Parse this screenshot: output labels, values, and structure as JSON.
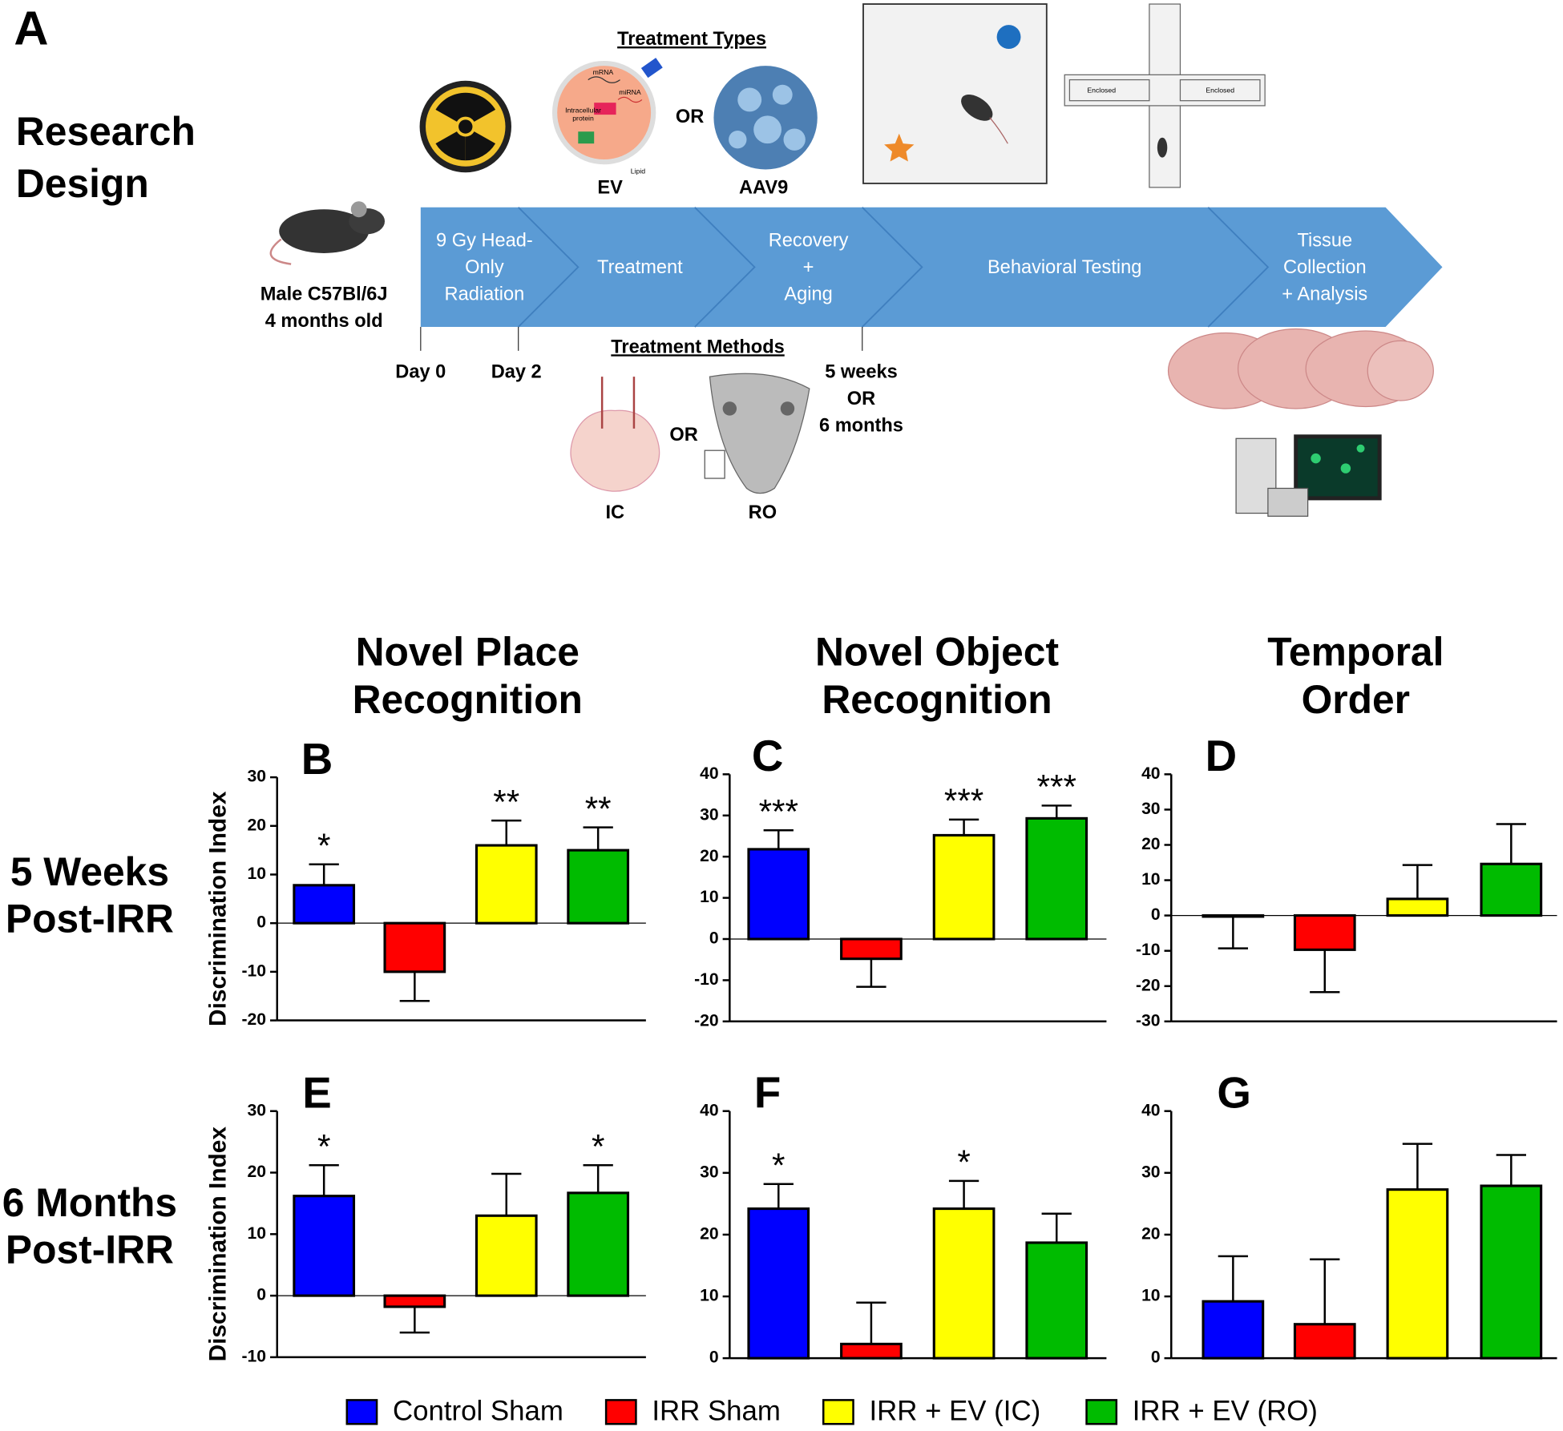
{
  "design": {
    "panel": "A",
    "title": [
      "Research",
      "Design"
    ],
    "mouse": [
      "Male C57Bl/6J",
      "4 months old"
    ],
    "treatment_types": {
      "heading": "Treatment Types",
      "ev": "EV",
      "or": "OR",
      "aav": "AAV9",
      "ev_labels": [
        "mRNA",
        "miRNA",
        "Intracellular",
        "protein",
        "Lipid"
      ]
    },
    "maze_labels": [
      "Enclosed",
      "Enclosed"
    ],
    "stages": [
      [
        "9 Gy Head-",
        "Only",
        "Radiation"
      ],
      [
        "Treatment"
      ],
      [
        "Recovery",
        "+",
        "Aging"
      ],
      [
        "Behavioral Testing"
      ],
      [
        "Tissue",
        "Collection",
        "+ Analysis"
      ]
    ],
    "days": [
      "Day 0",
      "Day 2"
    ],
    "methods": {
      "heading": "Treatment Methods",
      "ic": "IC",
      "or": "OR",
      "ro": "RO"
    },
    "timing": [
      "5 weeks",
      "OR",
      "6 months"
    ]
  },
  "columns": [
    [
      "Novel Place",
      "Recognition"
    ],
    [
      "Novel Object",
      "Recognition"
    ],
    [
      "Temporal",
      "Order"
    ]
  ],
  "rows": [
    [
      "5 Weeks",
      "Post-IRR"
    ],
    [
      "6 Months",
      "Post-IRR"
    ]
  ],
  "legend": [
    {
      "name": "Control Sham",
      "color": "#0000ff"
    },
    {
      "name": "IRR Sham",
      "color": "#ff0000"
    },
    {
      "name": "IRR + EV (IC)",
      "color": "#ffff00"
    },
    {
      "name": "IRR + EV (RO)",
      "color": "#00bb00"
    }
  ],
  "chart_data": [
    {
      "type": "bar",
      "panel": "B",
      "ylabel": "Discrimination Index",
      "ylim": [
        -20,
        30
      ],
      "yticks": [
        -20,
        -10,
        0,
        10,
        20,
        30
      ],
      "values": [
        7.8,
        -10,
        16,
        15
      ],
      "errors": [
        4.3,
        6,
        5.1,
        4.7
      ],
      "significance": [
        "*",
        null,
        "**",
        "**"
      ]
    },
    {
      "type": "bar",
      "panel": "C",
      "ylim": [
        -20,
        40
      ],
      "yticks": [
        -20,
        -10,
        0,
        10,
        20,
        30,
        40
      ],
      "values": [
        21.8,
        -4.8,
        25.2,
        29.3
      ],
      "errors": [
        4.6,
        6.8,
        3.8,
        3.1
      ],
      "significance": [
        "***",
        null,
        "***",
        "***"
      ]
    },
    {
      "type": "bar",
      "panel": "D",
      "ylim": [
        -30,
        40
      ],
      "yticks": [
        -30,
        -20,
        -10,
        0,
        10,
        20,
        30,
        40
      ],
      "values": [
        -0.3,
        -9.7,
        4.7,
        14.6
      ],
      "errors": [
        9,
        12,
        9.6,
        11.3
      ],
      "significance": [
        null,
        null,
        null,
        null
      ]
    },
    {
      "type": "bar",
      "panel": "E",
      "ylabel": "Discrimination Index",
      "ylim": [
        -10,
        30
      ],
      "yticks": [
        -10,
        0,
        10,
        20,
        30
      ],
      "values": [
        16.2,
        -1.8,
        13,
        16.7
      ],
      "errors": [
        5,
        4.2,
        6.8,
        4.5
      ],
      "significance": [
        "*",
        null,
        null,
        "*"
      ]
    },
    {
      "type": "bar",
      "panel": "F",
      "ylim": [
        0,
        40
      ],
      "yticks": [
        0,
        10,
        20,
        30,
        40
      ],
      "values": [
        24.2,
        2.3,
        24.2,
        18.7
      ],
      "errors": [
        4,
        6.7,
        4.5,
        4.7
      ],
      "significance": [
        "*",
        null,
        "*",
        null
      ]
    },
    {
      "type": "bar",
      "panel": "G",
      "ylim": [
        0,
        40
      ],
      "yticks": [
        0,
        10,
        20,
        30,
        40
      ],
      "values": [
        9.2,
        5.5,
        27.3,
        27.9
      ],
      "errors": [
        7.3,
        10.5,
        7.4,
        5
      ],
      "significance": [
        null,
        null,
        null,
        null
      ]
    }
  ]
}
